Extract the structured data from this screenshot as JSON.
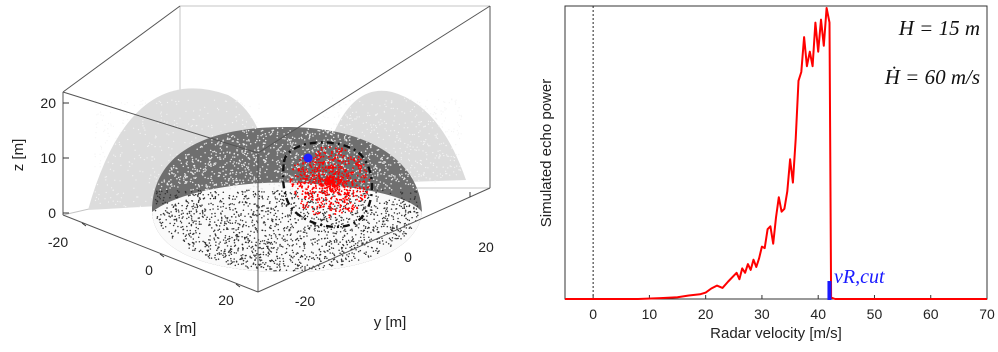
{
  "chart_data": [
    {
      "type": "scatter",
      "subtype": "3d-hemisphere",
      "title": "",
      "xlabel": "x [m]",
      "ylabel": "y [m]",
      "zlabel": "z [m]",
      "x_ticks": [
        "-20",
        "0",
        "20"
      ],
      "y_ticks": [
        "-20",
        "0",
        "20"
      ],
      "z_ticks": [
        "0",
        "10",
        "20"
      ],
      "xlim": [
        -25,
        25
      ],
      "ylim": [
        -25,
        25
      ],
      "zlim": [
        0,
        25
      ],
      "hemisphere_radius": 20,
      "highlight_center": [
        12,
        10,
        14
      ],
      "colors": {
        "scatter_points": "#222222",
        "hemisphere_shell": "#6f6f6f",
        "projections": "#d9d9d9",
        "highlighted_points": "#ff0000",
        "radar_point": "#2020ff",
        "boundary_dashes": "#111111"
      }
    },
    {
      "type": "line",
      "title": "",
      "xlabel": "Radar velocity [m/s]",
      "ylabel": "Simulated echo power",
      "xlim": [
        -5,
        70
      ],
      "x_ticks": [
        "0",
        "10",
        "20",
        "30",
        "40",
        "50",
        "60",
        "70"
      ],
      "y_ticks_shown": false,
      "annotations": {
        "height": "H = 15 m",
        "height_rate": "Ḣ = 60 m/s",
        "cutoff_label": "vR,cut"
      },
      "cutoff_velocity": 42,
      "reference_line_x": 0,
      "series": [
        {
          "color": "#ff0000",
          "x": [
            -5,
            8,
            12,
            15,
            17,
            19,
            20,
            21,
            22,
            23,
            24,
            25,
            25.5,
            26,
            26.5,
            27,
            27.5,
            28,
            28.5,
            29,
            29.5,
            30,
            30.5,
            31,
            31.5,
            32,
            32.5,
            33,
            33.5,
            34,
            34.5,
            35,
            35.5,
            36,
            36.5,
            37,
            37.5,
            38,
            38.5,
            39,
            39.5,
            40,
            40.5,
            41,
            41.5,
            42,
            42.3,
            43,
            50,
            60,
            70
          ],
          "y": [
            0,
            0,
            0.3,
            0.6,
            1.2,
            1.6,
            2.2,
            3.6,
            4.6,
            3.8,
            6.0,
            8.0,
            9.0,
            6.8,
            10.5,
            9.0,
            12.0,
            10.0,
            13.5,
            11.0,
            14.0,
            18.0,
            17.5,
            24.0,
            25.0,
            19.0,
            28.0,
            35.0,
            30.0,
            31.0,
            37.0,
            48.0,
            40.0,
            55.0,
            75.0,
            78.0,
            90.0,
            80.0,
            85.0,
            80.0,
            95.0,
            85.0,
            96.0,
            87.0,
            100.0,
            95.0,
            0.5,
            0,
            0,
            0,
            0
          ]
        }
      ]
    }
  ]
}
